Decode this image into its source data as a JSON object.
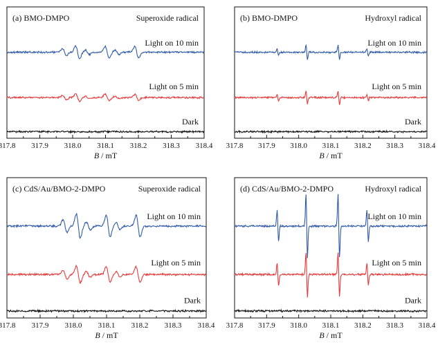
{
  "chart_data": [
    {
      "type": "line",
      "panel_label": "(a) BMO-DMPO",
      "radical": "Superoxide radical",
      "pattern": "superoxide",
      "xlabel_var": "B",
      "xlabel_unit": " / mT",
      "xlim": [
        317.8,
        318.4
      ],
      "x_ticks": [
        "317.8",
        "317.9",
        "318.0",
        "318.1",
        "318.2",
        "318.3",
        "318.4"
      ],
      "lines": [
        {
          "s": 0.18,
          "n": 2
        },
        {
          "s": 0.2,
          "n": 4
        },
        {
          "s": 0.12,
          "n": 5
        }
      ],
      "series": [
        {
          "name": "Light on 10 min",
          "color": "#2e5aa8",
          "amplitude": 1.0
        },
        {
          "name": "Light on 5 min",
          "color": "#e83a3a",
          "amplitude": 0.55
        },
        {
          "name": "Dark",
          "color": "#111111",
          "amplitude": 0.0
        }
      ]
    },
    {
      "type": "line",
      "panel_label": "(b) BMO-DMPO",
      "radical": "Hydroxyl radical",
      "pattern": "hydroxyl",
      "xlabel_var": "B",
      "xlabel_unit": " / mT",
      "xlim": [
        317.8,
        318.4
      ],
      "x_ticks": [
        "317.8",
        "317.9",
        "318.0",
        "318.1",
        "318.2",
        "318.3",
        "318.4"
      ],
      "lines": [
        {
          "x": 317.935,
          "r": 1
        },
        {
          "x": 318.025,
          "r": 2
        },
        {
          "x": 318.125,
          "r": 2
        },
        {
          "x": 318.215,
          "r": 1
        }
      ],
      "series": [
        {
          "name": "Light on 10 min",
          "color": "#2e5aa8",
          "amplitude": 0.55
        },
        {
          "name": "Light on 5 min",
          "color": "#e83a3a",
          "amplitude": 0.5
        },
        {
          "name": "Dark",
          "color": "#111111",
          "amplitude": 0.0
        }
      ]
    },
    {
      "type": "line",
      "panel_label": "(c) CdS/Au/BMO-2-DMPO",
      "radical": "Superoxide radical",
      "pattern": "superoxide",
      "xlabel_var": "B",
      "xlabel_unit": " / mT",
      "xlim": [
        317.8,
        318.4
      ],
      "x_ticks": [
        "317.8",
        "317.9",
        "318.0",
        "318.1",
        "318.2",
        "318.3",
        "318.4"
      ],
      "lines": [
        {
          "s": 0.18,
          "n": 2
        },
        {
          "s": 0.2,
          "n": 4
        },
        {
          "s": 0.12,
          "n": 5
        }
      ],
      "series": [
        {
          "name": "Light on 10 min",
          "color": "#2e5aa8",
          "amplitude": 1.7
        },
        {
          "name": "Light on 5 min",
          "color": "#e83a3a",
          "amplitude": 1.2
        },
        {
          "name": "Dark",
          "color": "#111111",
          "amplitude": 0.0
        }
      ]
    },
    {
      "type": "line",
      "panel_label": "(d) CdS/Au/BMO-2-DMPO",
      "radical": "Hydroxyl radical",
      "pattern": "hydroxyl",
      "xlabel_var": "B",
      "xlabel_unit": " / mT",
      "xlim": [
        317.8,
        318.4
      ],
      "x_ticks": [
        "317.8",
        "317.9",
        "318.0",
        "318.1",
        "318.2",
        "318.3",
        "318.4"
      ],
      "lines": [
        {
          "x": 317.935,
          "r": 1
        },
        {
          "x": 318.025,
          "r": 2
        },
        {
          "x": 318.125,
          "r": 2
        },
        {
          "x": 318.215,
          "r": 1
        }
      ],
      "series": [
        {
          "name": "Light on 10 min",
          "color": "#2e5aa8",
          "amplitude": 2.3
        },
        {
          "name": "Light on 5 min",
          "color": "#e83a3a",
          "amplitude": 1.6
        },
        {
          "name": "Dark",
          "color": "#111111",
          "amplitude": 0.0
        }
      ]
    }
  ]
}
